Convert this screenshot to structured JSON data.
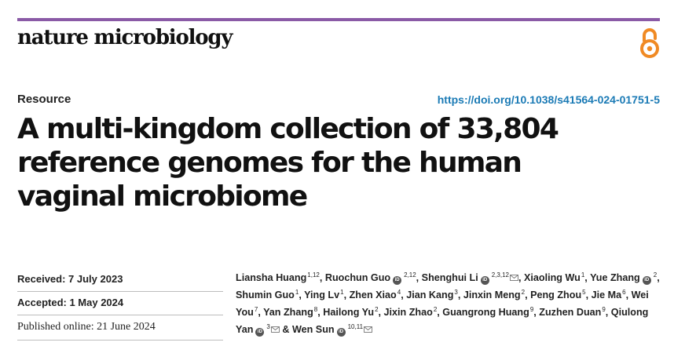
{
  "journal": "nature microbiology",
  "article_type": "Resource",
  "doi": "https://doi.org/10.1038/s41564-024-01751-5",
  "title_lines": [
    "A multi-kingdom collection of 33,804",
    "reference genomes for the human",
    "vaginal microbiome"
  ],
  "dates": {
    "received": "Received: 7 July 2023",
    "accepted": "Accepted: 1 May 2024",
    "published": "Published online: 21 June 2024"
  },
  "authors": [
    {
      "name": "Liansha Huang",
      "sup": "1,12",
      "orcid": false,
      "email": false
    },
    {
      "name": "Ruochun Guo",
      "sup": "2,12",
      "orcid": true,
      "email": false
    },
    {
      "name": "Shenghui Li",
      "sup": "2,3,12",
      "orcid": true,
      "email": true
    },
    {
      "name": "Xiaoling Wu",
      "sup": "1",
      "orcid": false,
      "email": false
    },
    {
      "name": "Yue Zhang",
      "sup": "2",
      "orcid": true,
      "email": false
    },
    {
      "name": "Shumin Guo",
      "sup": "1",
      "orcid": false,
      "email": false
    },
    {
      "name": "Ying Lv",
      "sup": "1",
      "orcid": false,
      "email": false
    },
    {
      "name": "Zhen Xiao",
      "sup": "4",
      "orcid": false,
      "email": false
    },
    {
      "name": "Jian Kang",
      "sup": "3",
      "orcid": false,
      "email": false
    },
    {
      "name": "Jinxin Meng",
      "sup": "2",
      "orcid": false,
      "email": false
    },
    {
      "name": "Peng Zhou",
      "sup": "5",
      "orcid": false,
      "email": false
    },
    {
      "name": "Jie Ma",
      "sup": "6",
      "orcid": false,
      "email": false
    },
    {
      "name": "Wei You",
      "sup": "7",
      "orcid": false,
      "email": false
    },
    {
      "name": "Yan Zhang",
      "sup": "8",
      "orcid": false,
      "email": false
    },
    {
      "name": "Hailong Yu",
      "sup": "2",
      "orcid": false,
      "email": false
    },
    {
      "name": "Jixin Zhao",
      "sup": "2",
      "orcid": false,
      "email": false
    },
    {
      "name": "Guangrong Huang",
      "sup": "9",
      "orcid": false,
      "email": false
    },
    {
      "name": "Zuzhen Duan",
      "sup": "9",
      "orcid": false,
      "email": false
    },
    {
      "name": "Qiulong Yan",
      "sup": "3",
      "orcid": true,
      "email": true
    },
    {
      "name": "Wen Sun",
      "sup": "10,11",
      "orcid": true,
      "email": true
    }
  ],
  "icons": {
    "open_access": "open-access-icon",
    "orcid": "orcid-icon",
    "email": "email-icon"
  },
  "colors": {
    "top_bar": "#8a5aa6",
    "open_access": "#f08a24",
    "doi_link": "#1a7ab5"
  }
}
